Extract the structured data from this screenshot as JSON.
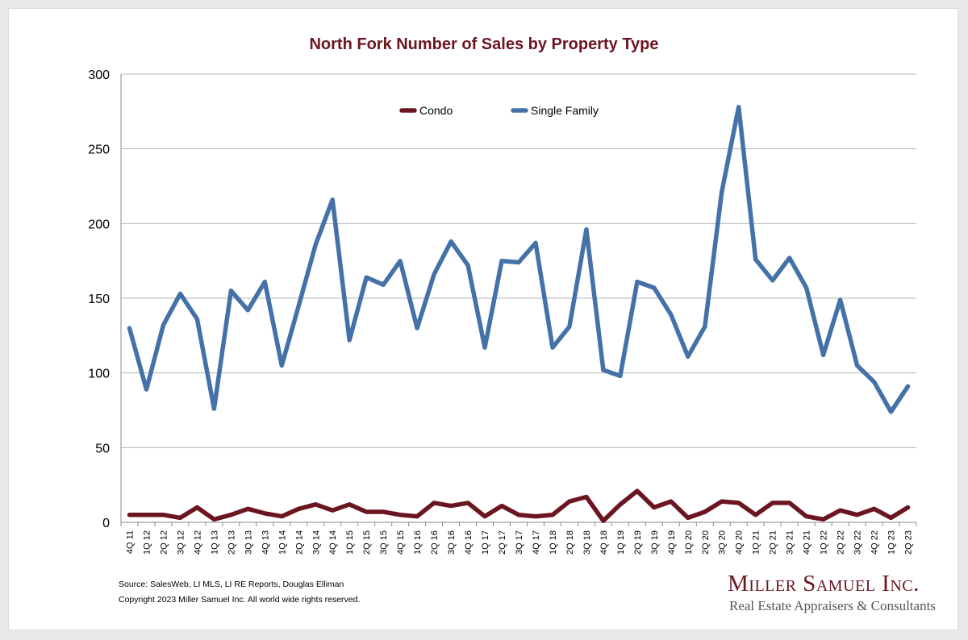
{
  "chart_data": {
    "type": "line",
    "title": "North Fork Number of Sales by Property Type",
    "ylim": [
      0,
      300
    ],
    "yticks": [
      0,
      50,
      100,
      150,
      200,
      250,
      300
    ],
    "grid": true,
    "legend_position": "top-center",
    "categories": [
      "4Q 11",
      "1Q 12",
      "2Q 12",
      "3Q 12",
      "4Q 12",
      "1Q 13",
      "2Q 13",
      "3Q 13",
      "4Q 13",
      "1Q 14",
      "2Q 14",
      "3Q 14",
      "4Q 14",
      "1Q 15",
      "2Q 15",
      "3Q 15",
      "4Q 15",
      "1Q 16",
      "2Q 16",
      "3Q 16",
      "4Q 16",
      "1Q 17",
      "2Q 17",
      "3Q 17",
      "4Q 17",
      "1Q 18",
      "2Q 18",
      "3Q 18",
      "4Q 18",
      "1Q 19",
      "2Q 19",
      "3Q 19",
      "4Q 19",
      "1Q 20",
      "2Q 20",
      "3Q 20",
      "4Q 20",
      "1Q 21",
      "2Q 21",
      "3Q 21",
      "4Q 21",
      "1Q 22",
      "2Q 22",
      "3Q 22",
      "4Q 22",
      "1Q 23",
      "2Q 23"
    ],
    "series": [
      {
        "name": "Condo",
        "color": "#6b1520",
        "values": [
          5,
          5,
          5,
          3,
          10,
          2,
          5,
          9,
          6,
          4,
          9,
          12,
          8,
          12,
          7,
          7,
          5,
          4,
          13,
          11,
          13,
          4,
          11,
          5,
          4,
          5,
          14,
          17,
          1,
          12,
          21,
          10,
          14,
          3,
          7,
          14,
          13,
          5,
          13,
          13,
          4,
          2,
          8,
          5,
          9,
          3,
          10
        ]
      },
      {
        "name": "Single Family",
        "color": "#4472a8",
        "values": [
          130,
          89,
          132,
          153,
          136,
          76,
          155,
          142,
          161,
          105,
          145,
          186,
          216,
          122,
          164,
          159,
          175,
          130,
          166,
          188,
          172,
          117,
          175,
          174,
          187,
          117,
          131,
          196,
          102,
          98,
          161,
          157,
          139,
          111,
          131,
          221,
          278,
          176,
          162,
          177,
          157,
          112,
          149,
          105,
          94,
          74,
          91
        ]
      }
    ]
  },
  "footer": {
    "source": "Source: SalesWeb, LI MLS, LI RE Reports, Douglas Elliman",
    "copyright": "Copyright 2023 Miller Samuel Inc.  All world wide rights reserved."
  },
  "logo": {
    "name": "Miller Samuel Inc.",
    "tagline": "Real Estate Appraisers & Consultants"
  }
}
